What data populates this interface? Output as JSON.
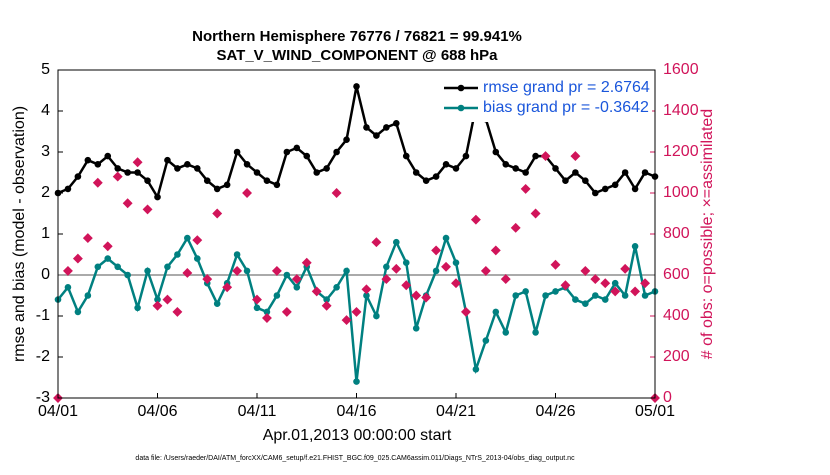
{
  "chart_data": {
    "type": "line",
    "title": "Northern Hemisphere 76776 / 76821 = 99.941%",
    "subtitle": "SAT_V_WIND_COMPONENT @ 688 hPa",
    "x_label": "Apr.01,2013 00:00:00 start",
    "y_label": "rmse and bias (model - observation)",
    "y2_label": "# of obs: o=possible; ×=assimilated",
    "footnote": "data file: /Users/raeder/DAI/ATM_forcXX/CAM6_setup/f.e21.FHIST_BGC.f09_025.CAM6assim.011/Diags_NTrS_2013-04/obs_diag_output.nc",
    "x": [
      0,
      0.5,
      1,
      1.5,
      2,
      2.5,
      3,
      3.5,
      4,
      4.5,
      5,
      5.5,
      6,
      6.5,
      7,
      7.5,
      8,
      8.5,
      9,
      9.5,
      10,
      10.5,
      11,
      11.5,
      12,
      12.5,
      13,
      13.5,
      14,
      14.5,
      15,
      15.5,
      16,
      16.5,
      17,
      17.5,
      18,
      18.5,
      19,
      19.5,
      20,
      20.5,
      21,
      21.5,
      22,
      22.5,
      23,
      23.5,
      24,
      24.5,
      25,
      25.5,
      26,
      26.5,
      27,
      27.5,
      28,
      28.5,
      29,
      29.5,
      30
    ],
    "xlim": [
      0,
      30
    ],
    "xticks": [
      {
        "value": 0,
        "label": "04/01"
      },
      {
        "value": 5,
        "label": "04/06"
      },
      {
        "value": 10,
        "label": "04/11"
      },
      {
        "value": 15,
        "label": "04/16"
      },
      {
        "value": 20,
        "label": "04/21"
      },
      {
        "value": 25,
        "label": "04/26"
      },
      {
        "value": 30,
        "label": "05/01"
      }
    ],
    "ylim": [
      -3,
      5
    ],
    "yticks": [
      -3,
      -2,
      -1,
      0,
      1,
      2,
      3,
      4,
      5
    ],
    "y2lim": [
      0,
      1600
    ],
    "y2ticks": [
      0,
      200,
      400,
      600,
      800,
      1000,
      1200,
      1400,
      1600
    ],
    "y2_color": "#d1145a",
    "series": [
      {
        "name": "rmse grand pr = 2.6764",
        "color": "#000000",
        "marker": "circle",
        "values": [
          2.0,
          2.1,
          2.4,
          2.8,
          2.7,
          2.9,
          2.6,
          2.5,
          2.5,
          2.3,
          1.9,
          2.8,
          2.6,
          2.7,
          2.6,
          2.3,
          2.1,
          2.2,
          3.0,
          2.7,
          2.5,
          2.3,
          2.2,
          3.0,
          3.1,
          2.9,
          2.5,
          2.6,
          3.0,
          3.3,
          4.6,
          3.6,
          3.4,
          3.6,
          3.7,
          2.9,
          2.5,
          2.3,
          2.4,
          2.7,
          2.6,
          2.9,
          4.1,
          3.8,
          3.0,
          2.7,
          2.6,
          2.5,
          2.9,
          2.9,
          2.6,
          2.3,
          2.5,
          2.3,
          2.0,
          2.1,
          2.2,
          2.5,
          2.1,
          2.5,
          2.4
        ]
      },
      {
        "name": "bias grand pr = -0.3642",
        "color": "#008080",
        "marker": "circle",
        "values": [
          -0.6,
          -0.3,
          -0.9,
          -0.5,
          0.2,
          0.4,
          0.2,
          0.0,
          -0.8,
          0.1,
          -0.6,
          0.2,
          0.5,
          0.9,
          0.4,
          -0.2,
          -0.7,
          -0.2,
          0.5,
          0.1,
          -0.8,
          -0.9,
          -0.5,
          0.0,
          -0.3,
          0.2,
          -0.4,
          -0.6,
          -0.3,
          0.1,
          -2.6,
          -0.5,
          -1.0,
          0.2,
          0.8,
          0.3,
          -1.3,
          -0.5,
          0.1,
          0.9,
          0.3,
          -0.9,
          -2.3,
          -1.6,
          -0.9,
          -1.4,
          -0.5,
          -0.4,
          -1.4,
          -0.5,
          -0.4,
          -0.3,
          -0.6,
          -0.7,
          -0.5,
          -0.6,
          -0.2,
          -0.5,
          0.7,
          -0.5,
          -0.4
        ]
      },
      {
        "color": "#d1145a",
        "axis": "y2",
        "marker": "diamond",
        "values": [
          0,
          620,
          680,
          780,
          1050,
          740,
          1080,
          950,
          1150,
          920,
          450,
          480,
          420,
          610,
          770,
          580,
          900,
          540,
          620,
          1000,
          480,
          390,
          620,
          420,
          580,
          660,
          520,
          450,
          1000,
          380,
          420,
          530,
          760,
          580,
          630,
          550,
          500,
          490,
          720,
          640,
          560,
          420,
          870,
          620,
          720,
          580,
          830,
          1020,
          900,
          1180,
          650,
          550,
          1180,
          620,
          580,
          560,
          520,
          630,
          520,
          560,
          0
        ]
      }
    ],
    "zero_line": true,
    "legend": "upper right",
    "legend_text_color": "#1a56db"
  }
}
